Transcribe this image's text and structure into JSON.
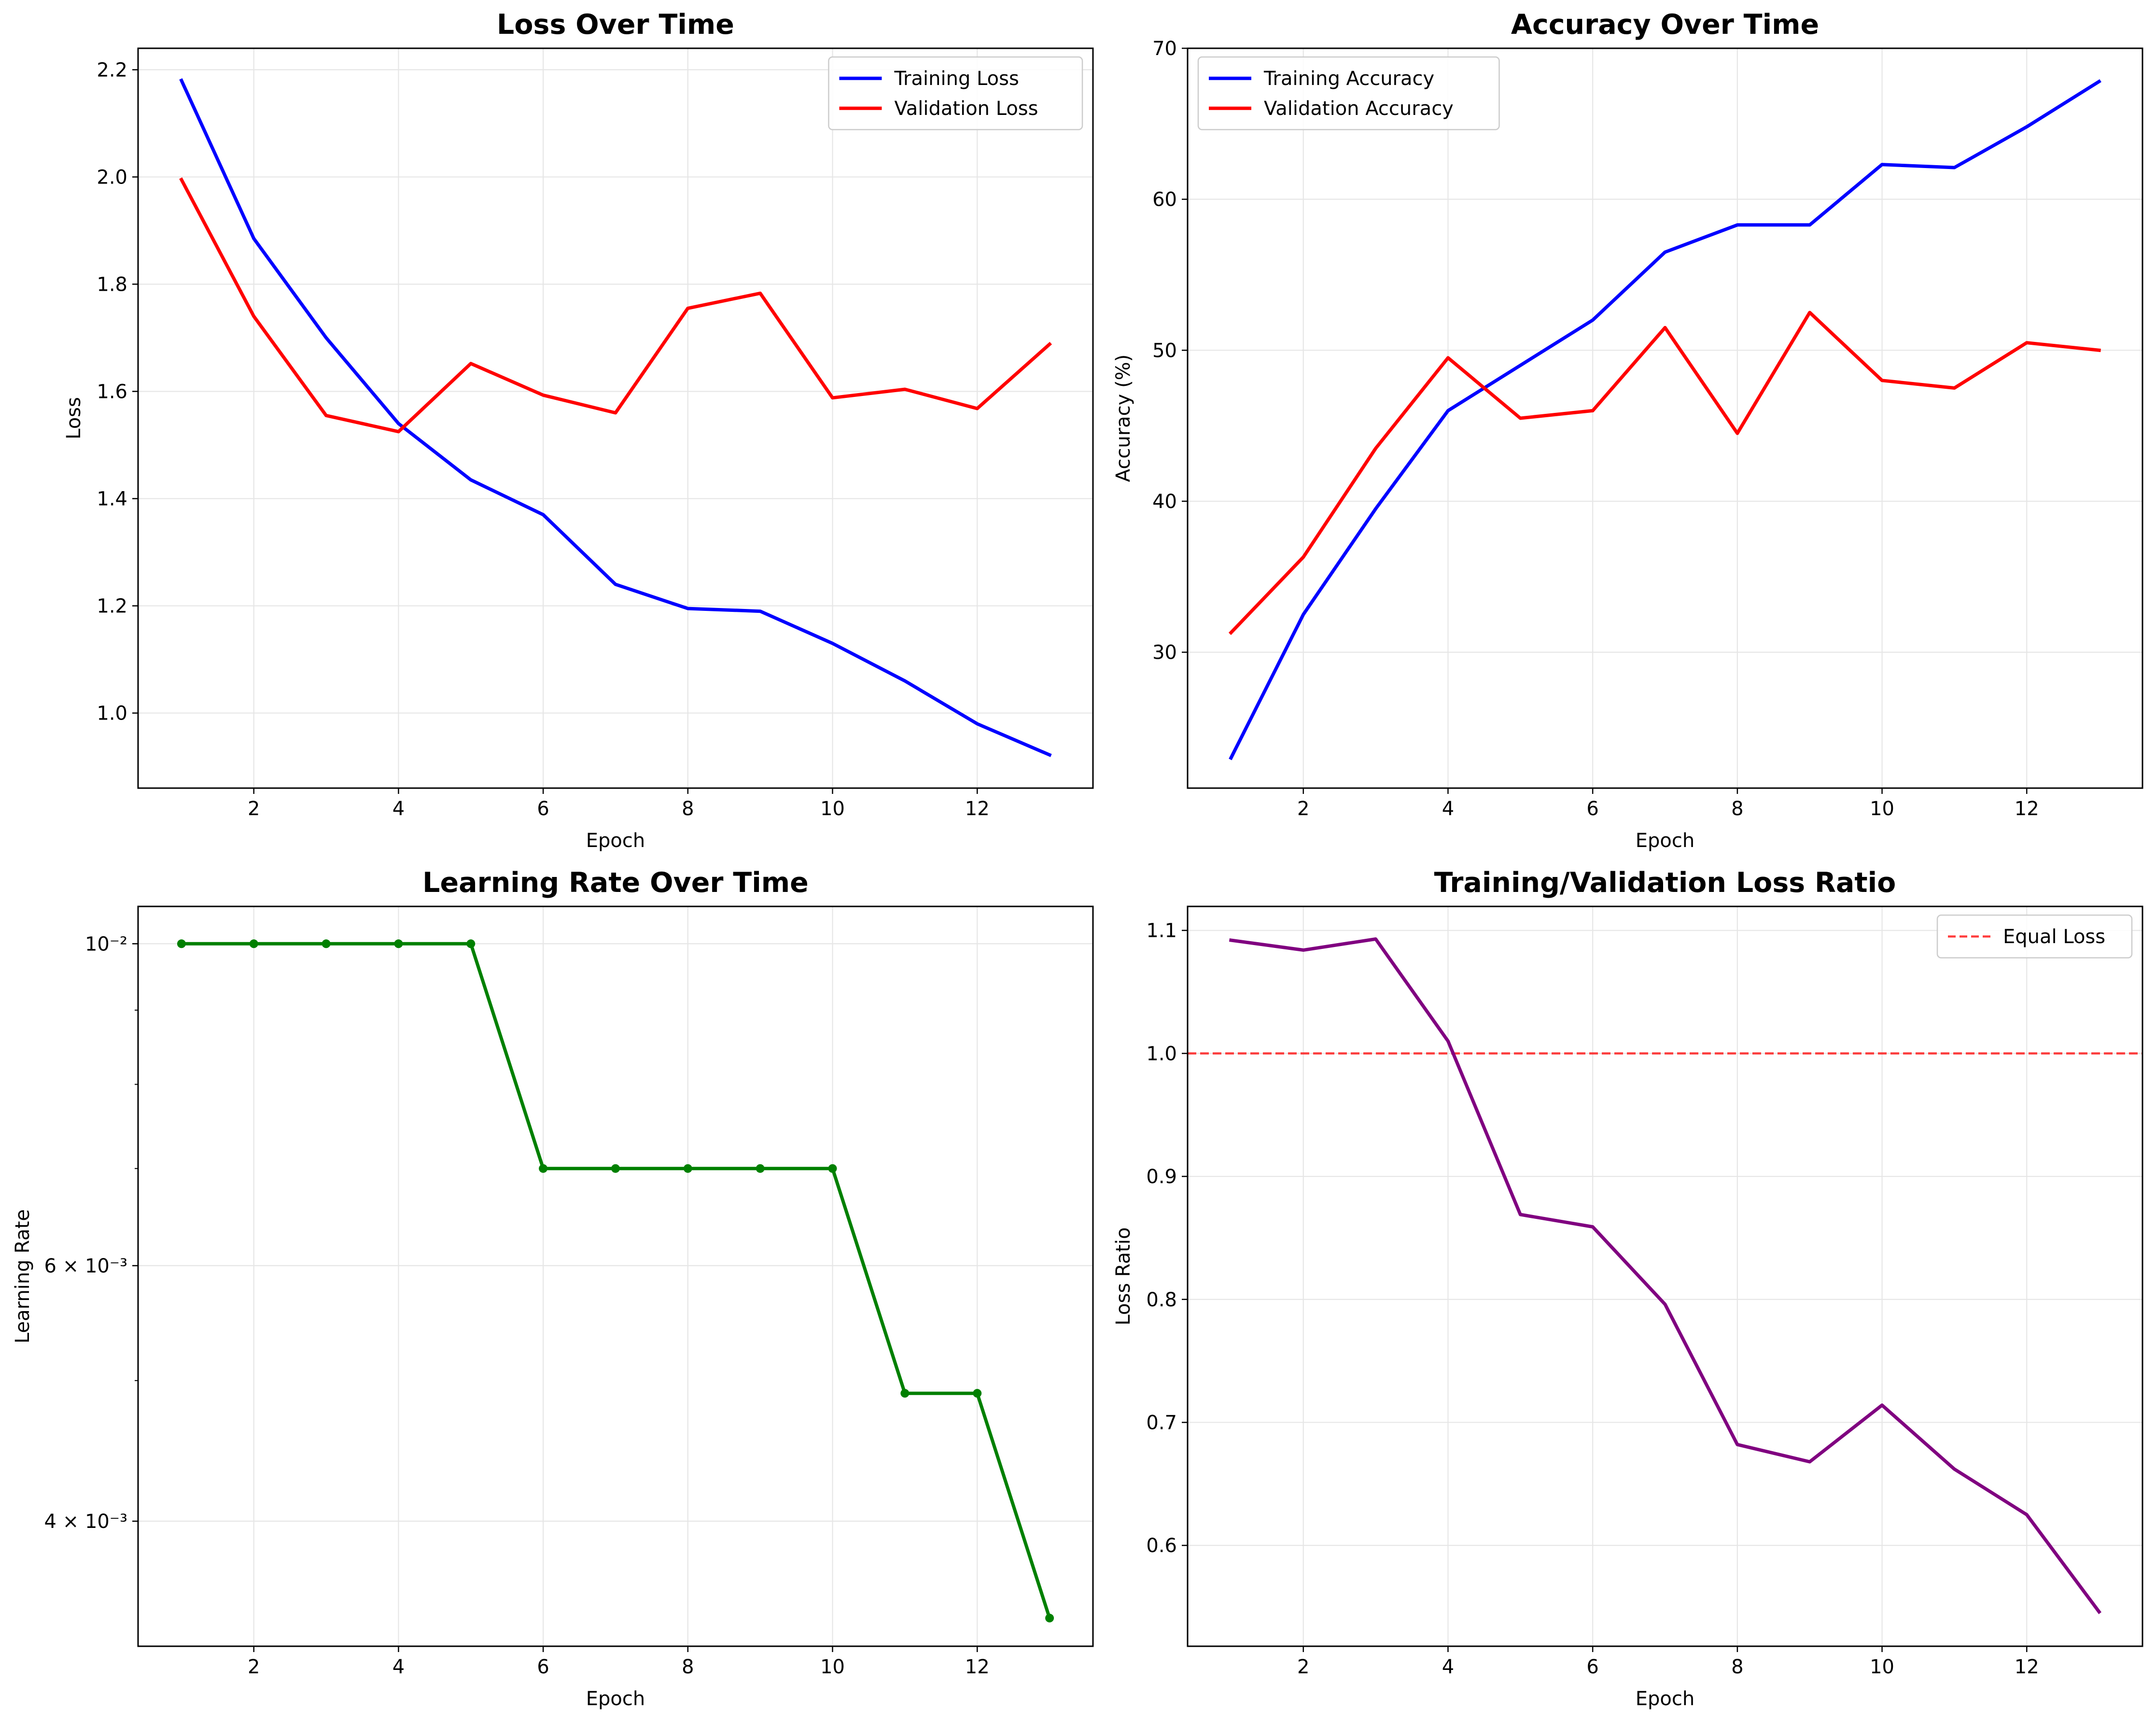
{
  "chart_data": [
    {
      "type": "line",
      "title": "Loss Over Time",
      "xlabel": "Epoch",
      "ylabel": "Loss",
      "x": [
        1,
        2,
        3,
        4,
        5,
        6,
        7,
        8,
        9,
        10,
        11,
        12,
        13
      ],
      "xlim": [
        0.4,
        13.6
      ],
      "ylim": [
        0.86,
        2.24
      ],
      "xticks": [
        2,
        4,
        6,
        8,
        10,
        12
      ],
      "yticks": [
        1.0,
        1.2,
        1.4,
        1.6,
        1.8,
        2.0,
        2.2
      ],
      "ytick_labels": [
        "1.0",
        "1.2",
        "1.4",
        "1.6",
        "1.8",
        "2.0",
        "2.2"
      ],
      "grid": true,
      "legend": "top-right",
      "series": [
        {
          "name": "Training Loss",
          "color": "#0000ff",
          "values": [
            2.18,
            1.885,
            1.7,
            1.54,
            1.435,
            1.37,
            1.24,
            1.195,
            1.19,
            1.13,
            1.06,
            0.98,
            0.922
          ]
        },
        {
          "name": "Validation Loss",
          "color": "#ff0000",
          "values": [
            1.995,
            1.74,
            1.555,
            1.525,
            1.652,
            1.593,
            1.56,
            1.755,
            1.783,
            1.588,
            1.604,
            1.568,
            1.688
          ]
        }
      ]
    },
    {
      "type": "line",
      "title": "Accuracy Over Time",
      "xlabel": "Epoch",
      "ylabel": "Accuracy (%)",
      "x": [
        1,
        2,
        3,
        4,
        5,
        6,
        7,
        8,
        9,
        10,
        11,
        12,
        13
      ],
      "xlim": [
        0.4,
        13.6
      ],
      "ylim": [
        21.0,
        70.0
      ],
      "xticks": [
        2,
        4,
        6,
        8,
        10,
        12
      ],
      "yticks": [
        30,
        40,
        50,
        60,
        70
      ],
      "ytick_labels": [
        "30",
        "40",
        "50",
        "60",
        "70"
      ],
      "grid": true,
      "legend": "top-left",
      "series": [
        {
          "name": "Training Accuracy",
          "color": "#0000ff",
          "values": [
            23.0,
            32.5,
            39.5,
            46.0,
            49.0,
            52.0,
            56.5,
            58.3,
            58.3,
            62.3,
            62.1,
            64.8,
            67.8
          ]
        },
        {
          "name": "Validation Accuracy",
          "color": "#ff0000",
          "values": [
            31.3,
            36.3,
            43.5,
            49.5,
            45.5,
            46.0,
            51.5,
            44.5,
            52.5,
            48.0,
            47.5,
            50.5,
            50.0
          ]
        }
      ]
    },
    {
      "type": "line",
      "title": "Learning Rate Over Time",
      "xlabel": "Epoch",
      "ylabel": "Learning Rate",
      "x": [
        1,
        2,
        3,
        4,
        5,
        6,
        7,
        8,
        9,
        10,
        11,
        12,
        13
      ],
      "xlim": [
        0.4,
        13.6
      ],
      "yscale": "log",
      "ylim": [
        0.00328,
        0.01061
      ],
      "xticks": [
        2,
        4,
        6,
        8,
        10,
        12
      ],
      "yticks": [
        0.01,
        0.006,
        0.004
      ],
      "ytick_labels": [
        "10⁻²",
        "6 × 10⁻³",
        "4 × 10⁻³"
      ],
      "minor_yticks": [
        0.009,
        0.008,
        0.007,
        0.005
      ],
      "grid": true,
      "series": [
        {
          "color": "#008000",
          "markers": true,
          "values": [
            0.01,
            0.01,
            0.01,
            0.01,
            0.01,
            0.007,
            0.007,
            0.007,
            0.007,
            0.007,
            0.0049,
            0.0049,
            0.00343
          ]
        }
      ]
    },
    {
      "type": "line",
      "title": "Training/Validation Loss Ratio",
      "xlabel": "Epoch",
      "ylabel": "Loss Ratio",
      "x": [
        1,
        2,
        3,
        4,
        5,
        6,
        7,
        8,
        9,
        10,
        11,
        12,
        13
      ],
      "xlim": [
        0.4,
        13.6
      ],
      "ylim": [
        0.518,
        1.1195
      ],
      "xticks": [
        2,
        4,
        6,
        8,
        10,
        12
      ],
      "yticks": [
        0.6,
        0.7,
        0.8,
        0.9,
        1.0,
        1.1
      ],
      "ytick_labels": [
        "0.6",
        "0.7",
        "0.8",
        "0.9",
        "1.0",
        "1.1"
      ],
      "grid": true,
      "legend": "top-right",
      "reference_line": {
        "name": "Equal Loss",
        "value": 1.0,
        "color": "#ff0000",
        "dashed": true
      },
      "series": [
        {
          "color": "#800080",
          "values": [
            1.092,
            1.084,
            1.093,
            1.01,
            0.869,
            0.859,
            0.796,
            0.682,
            0.668,
            0.714,
            0.662,
            0.625,
            0.546
          ]
        }
      ]
    }
  ]
}
